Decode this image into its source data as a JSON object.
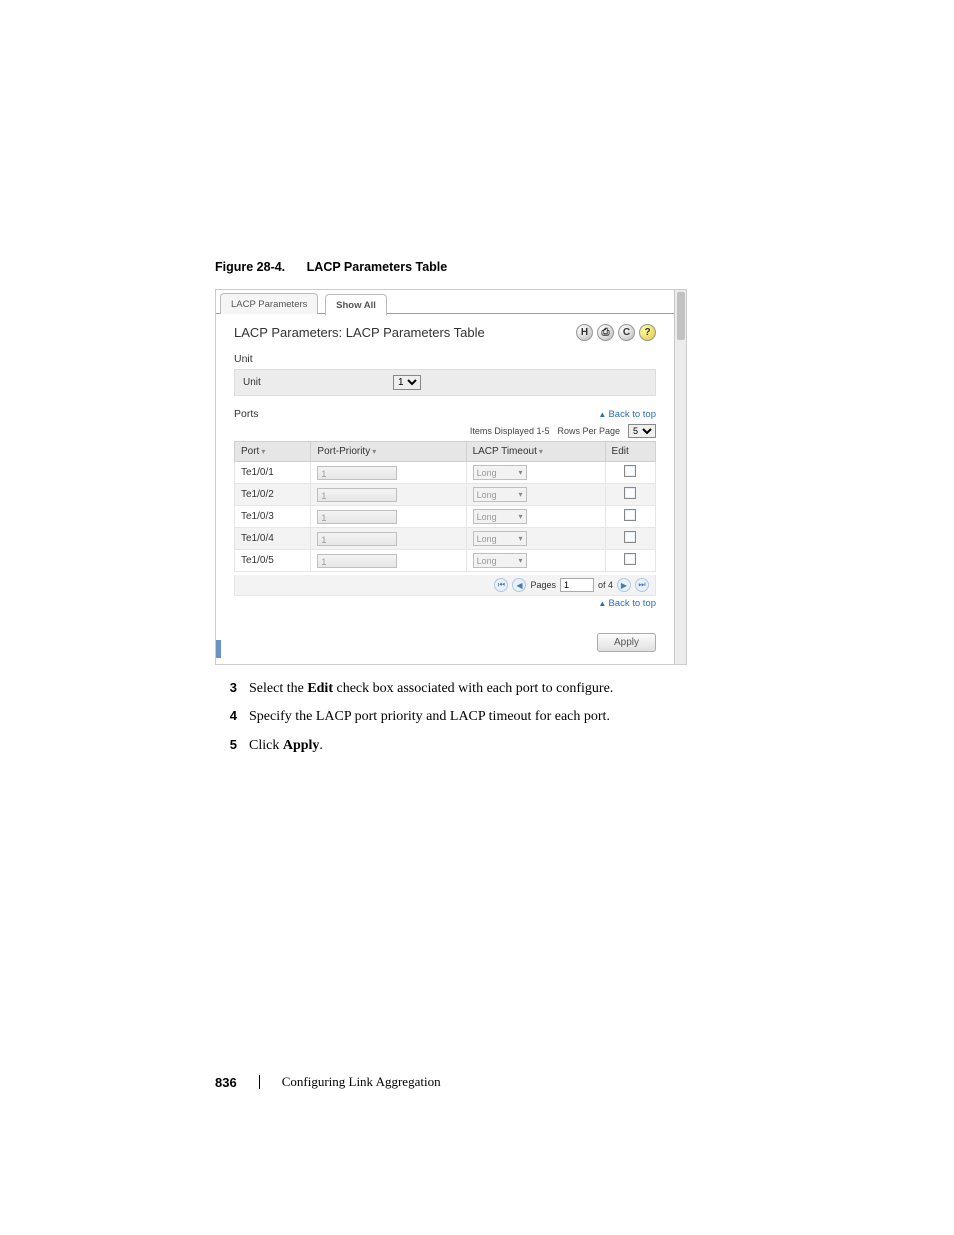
{
  "figure": {
    "label": "Figure 28-4.",
    "title": "LACP Parameters Table"
  },
  "panel": {
    "tabs": {
      "params": "LACP Parameters",
      "showAll": "Show All"
    },
    "title": "LACP Parameters: LACP Parameters Table",
    "unit": {
      "heading": "Unit",
      "label": "Unit",
      "value": "1"
    },
    "ports": {
      "heading": "Ports",
      "backToTop": "Back to top",
      "itemsDisplayed": "Items Displayed 1-5",
      "rowsPerPageLabel": "Rows Per Page",
      "rowsPerPageValue": "5",
      "columns": {
        "port": "Port",
        "priority": "Port-Priority",
        "timeout": "LACP Timeout",
        "edit": "Edit"
      },
      "rows": [
        {
          "port": "Te1/0/1",
          "priority": "1",
          "timeout": "Long"
        },
        {
          "port": "Te1/0/2",
          "priority": "1",
          "timeout": "Long"
        },
        {
          "port": "Te1/0/3",
          "priority": "1",
          "timeout": "Long"
        },
        {
          "port": "Te1/0/4",
          "priority": "1",
          "timeout": "Long"
        },
        {
          "port": "Te1/0/5",
          "priority": "1",
          "timeout": "Long"
        }
      ],
      "pagination": {
        "pagesLabel": "Pages",
        "current": "1",
        "ofLabel": "of 4"
      }
    },
    "applyLabel": "Apply"
  },
  "steps": {
    "s3": {
      "num": "3",
      "pre": "Select the ",
      "bold": "Edit",
      "post": " check box associated with each port to configure."
    },
    "s4": {
      "num": "4",
      "text": "Specify the LACP port priority and LACP timeout for each port."
    },
    "s5": {
      "num": "5",
      "pre": "Click ",
      "bold": "Apply",
      "post": "."
    }
  },
  "footer": {
    "page": "836",
    "section": "Configuring Link Aggregation"
  }
}
